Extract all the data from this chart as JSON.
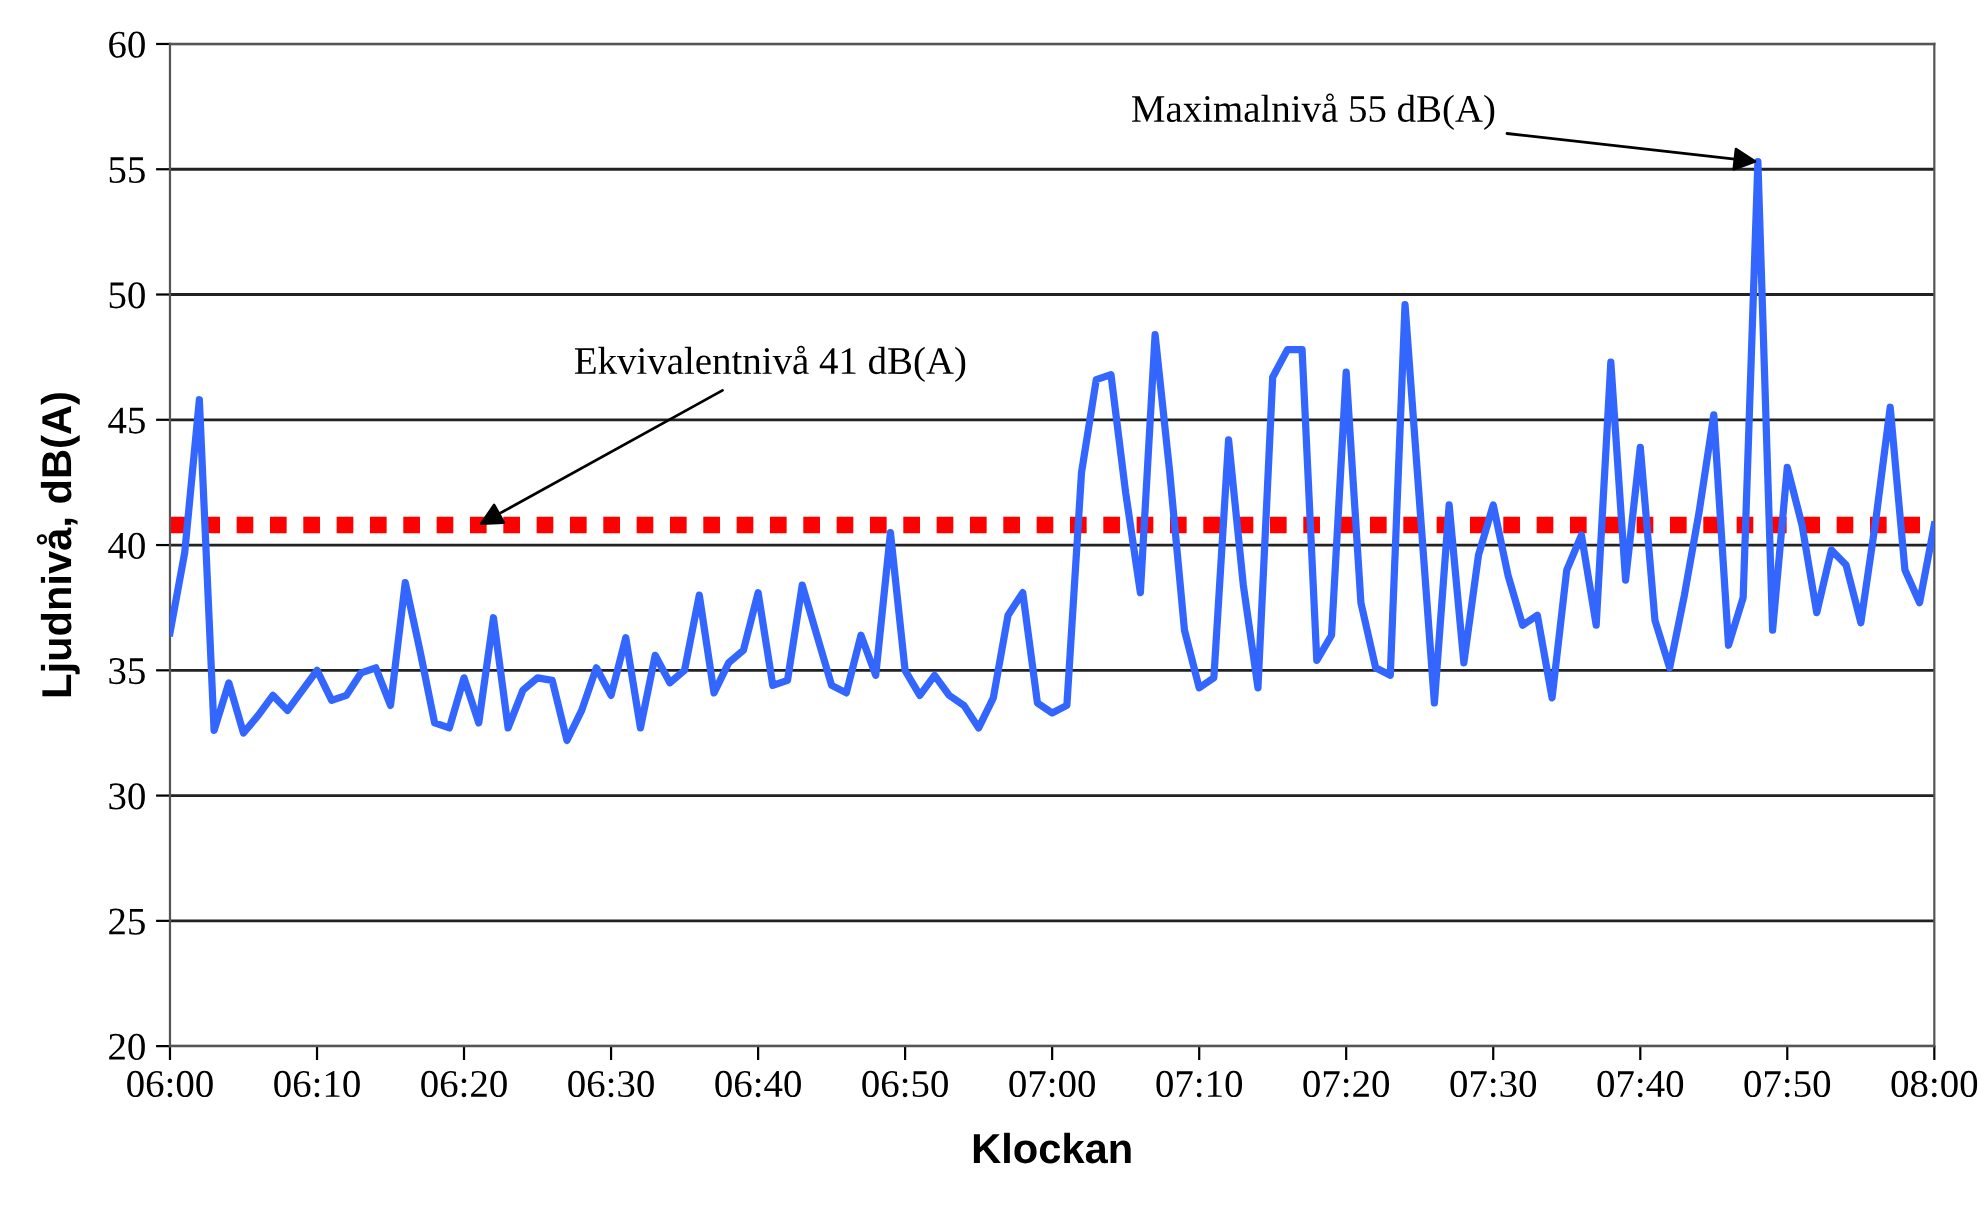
{
  "chart_data": {
    "type": "line",
    "xlabel": "Klockan",
    "ylabel": "Ljudnivå, dB(A)",
    "x": [
      6,
      6.0167,
      6.0333,
      6.05,
      6.0667,
      6.0833,
      6.1,
      6.1167,
      6.1333,
      6.15,
      6.1667,
      6.1833,
      6.2,
      6.2167,
      6.2333,
      6.25,
      6.2667,
      6.2833,
      6.3,
      6.3167,
      6.3333,
      6.35,
      6.3667,
      6.3833,
      6.4,
      6.4167,
      6.4333,
      6.45,
      6.4667,
      6.4833,
      6.5,
      6.5167,
      6.5333,
      6.55,
      6.5667,
      6.5833,
      6.6,
      6.6167,
      6.6333,
      6.65,
      6.6667,
      6.6833,
      6.7,
      6.7167,
      6.7333,
      6.75,
      6.7667,
      6.7833,
      6.8,
      6.8167,
      6.8333,
      6.85,
      6.8667,
      6.8833,
      6.9,
      6.9167,
      6.9333,
      6.95,
      6.9667,
      6.9833,
      7,
      7.0167,
      7.0333,
      7.05,
      7.0667,
      7.0833,
      7.1,
      7.1167,
      7.1333,
      7.15,
      7.1667,
      7.1833,
      7.2,
      7.2167,
      7.2333,
      7.25,
      7.2667,
      7.2833,
      7.3,
      7.3167,
      7.3333,
      7.35,
      7.3667,
      7.3833,
      7.4,
      7.4167,
      7.4333,
      7.45,
      7.4667,
      7.4833,
      7.5,
      7.5167,
      7.5333,
      7.55,
      7.5667,
      7.5833,
      7.6,
      7.6167,
      7.6333,
      7.65,
      7.6667,
      7.6833,
      7.7,
      7.7167,
      7.7333,
      7.75,
      7.7667,
      7.7833,
      7.8,
      7.8167,
      7.8333,
      7.85,
      7.8667,
      7.8833,
      7.9,
      7.9167,
      7.9333,
      7.95,
      7.9667,
      7.9833,
      8
    ],
    "series": [
      {
        "color": "#3366ff",
        "values": [
          36.5,
          39.7,
          45.8,
          32.6,
          34.5,
          32.5,
          33.2,
          34.0,
          33.4,
          34.2,
          35.0,
          33.8,
          34.0,
          34.9,
          35.1,
          33.6,
          38.5,
          35.8,
          32.9,
          32.7,
          34.7,
          32.9,
          37.1,
          32.7,
          34.2,
          34.7,
          34.6,
          32.2,
          33.4,
          35.1,
          34.0,
          36.3,
          32.7,
          35.6,
          34.5,
          35.0,
          38.0,
          34.1,
          35.3,
          35.8,
          38.1,
          34.4,
          34.6,
          38.4,
          36.4,
          34.4,
          34.1,
          36.4,
          34.8,
          40.5,
          35.0,
          34.0,
          34.8,
          34.0,
          33.6,
          32.7,
          33.9,
          37.2,
          38.1,
          33.7,
          33.3,
          33.6,
          42.9,
          46.6,
          46.8,
          42.1,
          38.1,
          48.4,
          42.9,
          36.6,
          34.3,
          34.7,
          44.2,
          38.4,
          34.3,
          46.7,
          47.8,
          47.8,
          35.4,
          36.4,
          46.9,
          37.7,
          35.1,
          34.8,
          49.6,
          41.6,
          33.7,
          41.6,
          35.3,
          39.6,
          41.6,
          38.8,
          36.8,
          37.2,
          33.9,
          39.0,
          40.4,
          36.8,
          47.3,
          38.6,
          43.9,
          37.0,
          35.1,
          38.0,
          41.3,
          45.2,
          36.0,
          37.9,
          55.3,
          36.6,
          43.1,
          40.8,
          37.3,
          39.8,
          39.2,
          36.9,
          40.9,
          45.5,
          39.0,
          37.7,
          40.8
        ]
      }
    ],
    "ref_lines": [
      {
        "axis": "y",
        "value": 40.8,
        "color": "#ff0000",
        "line_style": "dotted"
      }
    ],
    "annotations": [
      {
        "text": "Ekvivalentnivå 41 dB(A)",
        "x": 6.35,
        "y": 40.8
      },
      {
        "text": "Maximalnivå 55 dB(A)",
        "x": 7.8,
        "y": 55.3
      }
    ],
    "xlim": [
      6,
      8
    ],
    "xticks": [
      {
        "value": 6,
        "label": "06:00"
      },
      {
        "value": 6.1667,
        "label": "06:10"
      },
      {
        "value": 6.3333,
        "label": "06:20"
      },
      {
        "value": 6.5,
        "label": "06:30"
      },
      {
        "value": 6.6667,
        "label": "06:40"
      },
      {
        "value": 6.8333,
        "label": "06:50"
      },
      {
        "value": 7,
        "label": "07:00"
      },
      {
        "value": 7.1667,
        "label": "07:10"
      },
      {
        "value": 7.3333,
        "label": "07:20"
      },
      {
        "value": 7.5,
        "label": "07:30"
      },
      {
        "value": 7.6667,
        "label": "07:40"
      },
      {
        "value": 7.8333,
        "label": "07:50"
      },
      {
        "value": 8,
        "label": "08:00"
      }
    ],
    "ylim": [
      20,
      60
    ],
    "yticks": [
      20,
      25,
      30,
      35,
      40,
      45,
      50,
      55,
      60
    ],
    "grid": "y",
    "legend": false,
    "marker": "none",
    "line_style": "solid"
  }
}
